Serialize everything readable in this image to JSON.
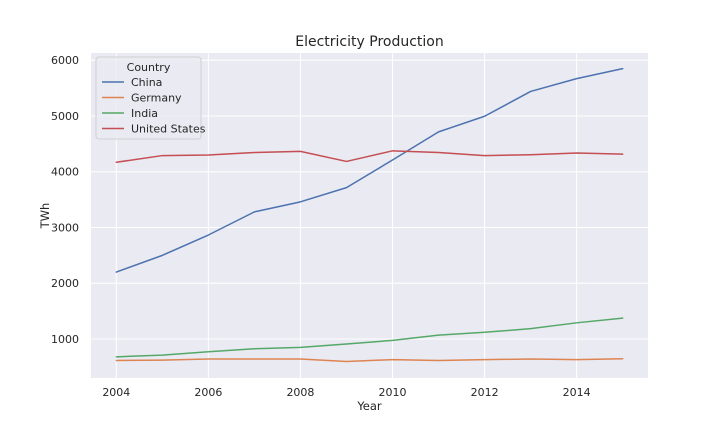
{
  "chart_data": {
    "type": "line",
    "title": "Electricity Production",
    "xlabel": "Year",
    "ylabel": "TWh",
    "x": [
      2004,
      2005,
      2006,
      2007,
      2008,
      2009,
      2010,
      2011,
      2012,
      2013,
      2014,
      2015
    ],
    "xticks": [
      2004,
      2006,
      2008,
      2010,
      2012,
      2014
    ],
    "yticks": [
      1000,
      2000,
      3000,
      4000,
      5000,
      6000
    ],
    "xlim": [
      2003.45,
      2015.55
    ],
    "ylim": [
      300,
      6130
    ],
    "grid": true,
    "legend": {
      "title": "Country",
      "placement": "top-left"
    },
    "series": [
      {
        "name": "China",
        "color": "#4c72b0",
        "values": [
          2200,
          2500,
          2865,
          3280,
          3460,
          3715,
          4210,
          4715,
          4995,
          5440,
          5670,
          5850
        ]
      },
      {
        "name": "Germany",
        "color": "#dd8452",
        "values": [
          615,
          620,
          640,
          640,
          640,
          595,
          630,
          615,
          630,
          640,
          630,
          645
        ]
      },
      {
        "name": "India",
        "color": "#55a868",
        "values": [
          680,
          710,
          770,
          825,
          850,
          910,
          975,
          1070,
          1120,
          1185,
          1290,
          1375
        ]
      },
      {
        "name": "United States",
        "color": "#c44e52",
        "values": [
          4170,
          4290,
          4300,
          4345,
          4365,
          4185,
          4375,
          4345,
          4290,
          4305,
          4335,
          4315
        ]
      }
    ]
  }
}
